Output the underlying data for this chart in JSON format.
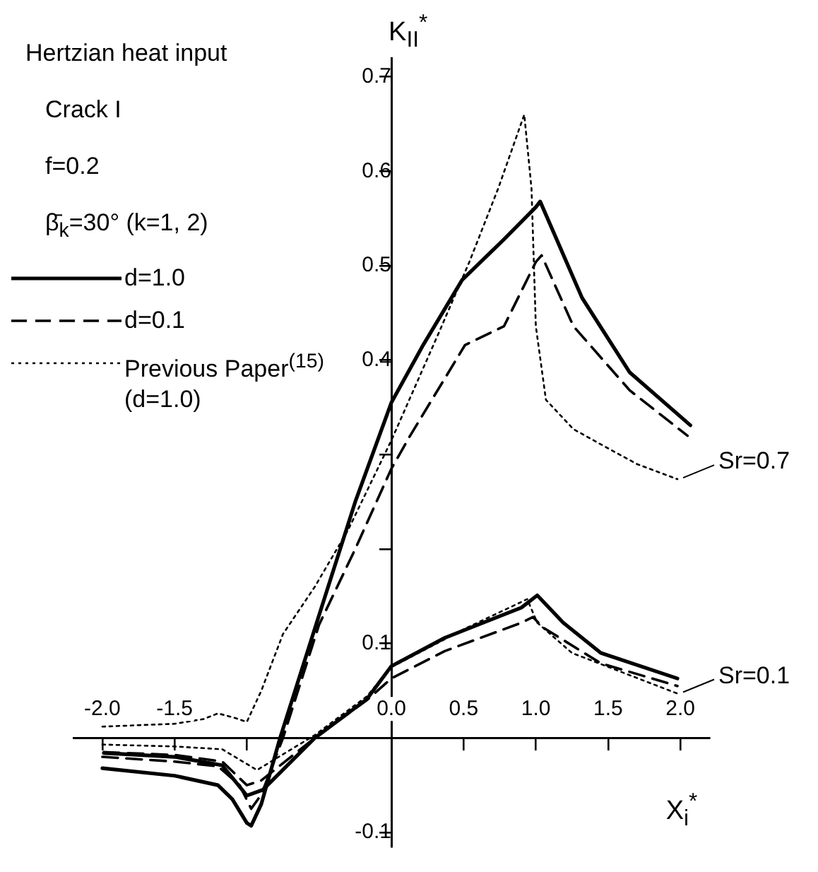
{
  "chart_data": {
    "type": "line",
    "xlabel": "X$_{i}$$^{*}$",
    "ylabel": "K$_{II}$$^{*}$",
    "xlim": [
      -2.2,
      2.2
    ],
    "ylim": [
      -0.115,
      0.72
    ],
    "xticks": [
      {
        "value": -2,
        "label": "-2.0"
      },
      {
        "value": -1.5,
        "label": "-1.5"
      },
      {
        "value": -1,
        "label": null
      },
      {
        "value": 0,
        "label": "0.0"
      },
      {
        "value": 0.5,
        "label": "0.5"
      },
      {
        "value": 1,
        "label": "1.0"
      },
      {
        "value": 1.5,
        "label": "1.5"
      },
      {
        "value": 2,
        "label": "2.0"
      }
    ],
    "yticks": [
      -0.1,
      0.1,
      {
        "value": 0.2,
        "label": null
      },
      {
        "value": 0.3,
        "label": null
      },
      0.4,
      0.5,
      0.6,
      0.7
    ],
    "grid": false,
    "marker": "none",
    "legend": "top left",
    "annotations": [
      "Hertzian heat input",
      "Crack I",
      "f=0.2",
      "β̄$_{k}$=30° (k=1, 2)",
      {
        "text": "Sr=0.7",
        "x": 1.98,
        "y": 0.274
      },
      {
        "text": "Sr=0.1",
        "x": 1.98,
        "y": 0.047
      }
    ],
    "series": [
      {
        "name": "d=1.0",
        "color": "#000000",
        "line_style": "solid",
        "x": [
          -2.0,
          -1.5,
          -1.2,
          -1.1,
          -1.0,
          -0.97,
          -0.9,
          -0.77,
          -0.5,
          -0.25,
          0,
          0.22,
          0.49,
          0.78,
          1.0,
          1.03,
          1.32,
          1.65,
          2.07
        ],
        "values": [
          -0.032,
          -0.04,
          -0.05,
          -0.065,
          -0.09,
          -0.093,
          -0.07,
          0.0,
          0.13,
          0.25,
          0.355,
          0.416,
          0.485,
          0.528,
          0.562,
          0.568,
          0.466,
          0.387,
          0.331
        ]
      },
      {
        "name": "d=0.1",
        "color": "#000000",
        "line_style": "dashed",
        "x": [
          -2.0,
          -1.5,
          -1.2,
          -1.05,
          -0.97,
          -0.9,
          -0.75,
          -0.5,
          -0.25,
          0,
          0.13,
          0.51,
          0.78,
          1.0,
          1.04,
          1.26,
          1.65,
          2.05
        ],
        "values": [
          -0.02,
          -0.025,
          -0.03,
          -0.05,
          -0.075,
          -0.06,
          0.0,
          0.12,
          0.2,
          0.285,
          0.32,
          0.416,
          0.436,
          0.504,
          0.511,
          0.436,
          0.368,
          0.32
        ]
      },
      {
        "name": "Previous Paper$^{(15)}$ (d=1.0)",
        "color": "#000000",
        "line_style": "dotted",
        "x": [
          -2.0,
          -1.5,
          -1.3,
          -1.2,
          -1.1,
          -1.0,
          -0.9,
          -0.75,
          -0.53,
          -0.3,
          0,
          0.32,
          0.54,
          0.74,
          0.92,
          0.97,
          1.0,
          1.07,
          1.26,
          1.46,
          1.7,
          1.98
        ],
        "values": [
          0.012,
          0.015,
          0.02,
          0.026,
          0.022,
          0.017,
          0.05,
          0.11,
          0.16,
          0.22,
          0.315,
          0.426,
          0.504,
          0.582,
          0.66,
          0.582,
          0.436,
          0.358,
          0.327,
          0.31,
          0.29,
          0.274
        ]
      },
      {
        "color": "#000000",
        "line_style": "solid",
        "x": [
          -1.99,
          -1.5,
          -1.17,
          -1.0,
          -0.89,
          -0.53,
          -0.17,
          0,
          0.37,
          0.9,
          1.01,
          1.19,
          1.45,
          1.98
        ],
        "values": [
          -0.016,
          -0.02,
          -0.029,
          -0.061,
          -0.055,
          0.0,
          0.041,
          0.076,
          0.106,
          0.138,
          0.151,
          0.122,
          0.09,
          0.063
        ]
      },
      {
        "color": "#000000",
        "line_style": "dashed",
        "x": [
          -1.99,
          -1.5,
          -1.17,
          -1.0,
          -0.9,
          -0.53,
          -0.17,
          0,
          0.37,
          0.9,
          0.98,
          1.05,
          1.45,
          1.98
        ],
        "values": [
          -0.015,
          -0.018,
          -0.025,
          -0.05,
          -0.045,
          0.0,
          0.04,
          0.063,
          0.092,
          0.122,
          0.128,
          0.117,
          0.079,
          0.055
        ]
      },
      {
        "color": "#000000",
        "line_style": "dotted",
        "x": [
          -2.0,
          -1.5,
          -1.17,
          -0.93,
          -0.53,
          -0.17,
          0,
          0.5,
          0.9,
          0.94,
          1.01,
          1.25,
          1.98
        ],
        "values": [
          -0.007,
          -0.009,
          -0.012,
          -0.034,
          0.003,
          0.044,
          0.075,
          0.115,
          0.144,
          0.147,
          0.122,
          0.09,
          0.047
        ]
      }
    ]
  }
}
